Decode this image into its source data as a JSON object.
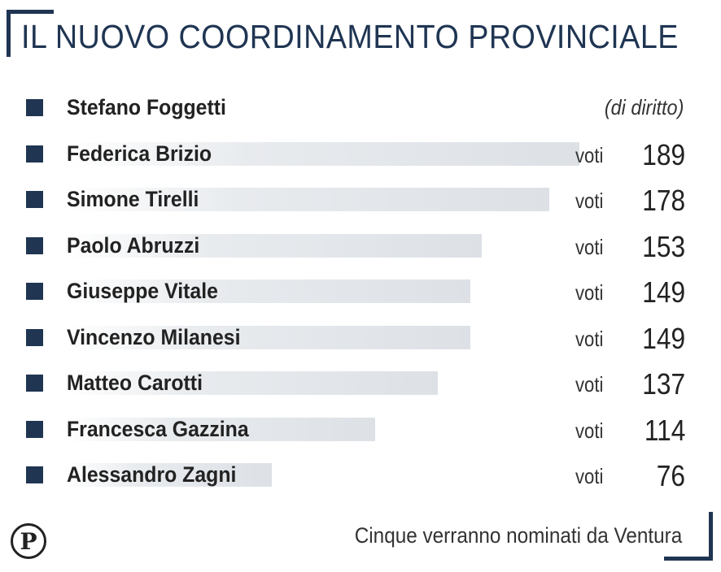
{
  "chart_data": {
    "type": "bar",
    "title": "IL NUOVO COORDINAMENTO PROVINCIALE",
    "categories": [
      "Stefano Foggetti",
      "Federica Brizio",
      "Simone Tirelli",
      "Paolo Abruzzi",
      "Giuseppe Vitale",
      "Vincenzo Milanesi",
      "Matteo Carotti",
      "Francesca Gazzina",
      "Alessandro Zagni"
    ],
    "values": [
      null,
      189,
      178,
      153,
      149,
      149,
      137,
      114,
      76
    ],
    "value_prefix": "voti",
    "annotations": [
      {
        "category": "Stefano Foggetti",
        "text": "(di diritto)"
      }
    ],
    "xlim": [
      0,
      189
    ],
    "footnote": "Cinque verranno nominati da Ventura",
    "colors": {
      "accent": "#1f3552",
      "bar": "#dde1e6"
    }
  }
}
